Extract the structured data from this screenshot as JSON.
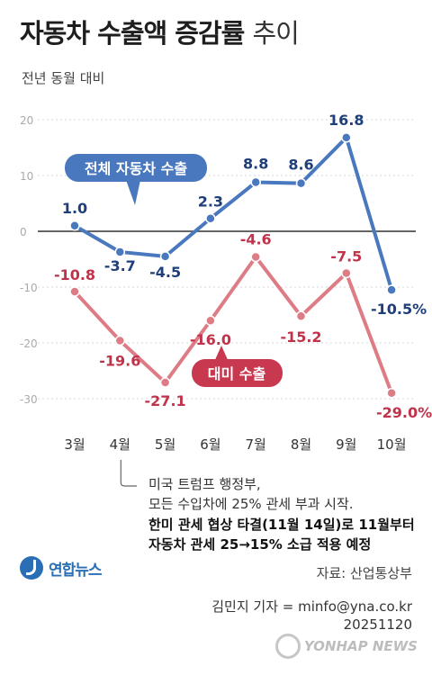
{
  "title_main": "자동차 수출액 증감률",
  "title_light": "추이",
  "subtitle": "전년 동월 대비",
  "chart_data": {
    "type": "line",
    "categories": [
      "3월",
      "4월",
      "5월",
      "6월",
      "7월",
      "8월",
      "9월",
      "10월"
    ],
    "ylim": [
      -35,
      20
    ],
    "yticks": [
      20,
      10,
      0,
      -10,
      -20,
      -30
    ],
    "grid": true,
    "series": [
      {
        "name": "전체 자동차 수출",
        "color": "#4a78bf",
        "values": [
          1.0,
          -3.7,
          -4.5,
          2.3,
          8.8,
          8.6,
          16.8,
          -10.5
        ],
        "labels": [
          "1.0",
          "-3.7",
          "-4.5",
          "2.3",
          "8.8",
          "8.6",
          "16.8",
          "-10.5%"
        ]
      },
      {
        "name": "대미 수출",
        "color": "#de7c85",
        "text_color": "#c0334a",
        "values": [
          -10.8,
          -19.6,
          -27.1,
          -16.0,
          -4.6,
          -15.2,
          -7.5,
          -29.0
        ],
        "labels": [
          "-10.8",
          "-19.6",
          "-27.1",
          "-16.0",
          "-4.6",
          "-15.2",
          "-7.5",
          "-29.0%"
        ]
      }
    ]
  },
  "notes": {
    "line1": "미국 트럼프 행정부,",
    "line2": "모든 수입차에 25% 관세 부과 시작.",
    "line3": "한미 관세 협상 타결(11월 14일)로 11월부터",
    "line4": "자동차 관세 25→15% 소급 적용 예정"
  },
  "logo_text": "연합뉴스",
  "source": "자료: 산업통상부",
  "credit_line1": "김민지 기자 = minfo@yna.co.kr",
  "credit_line2": "20251120",
  "watermark": "YONHAP NEWS"
}
